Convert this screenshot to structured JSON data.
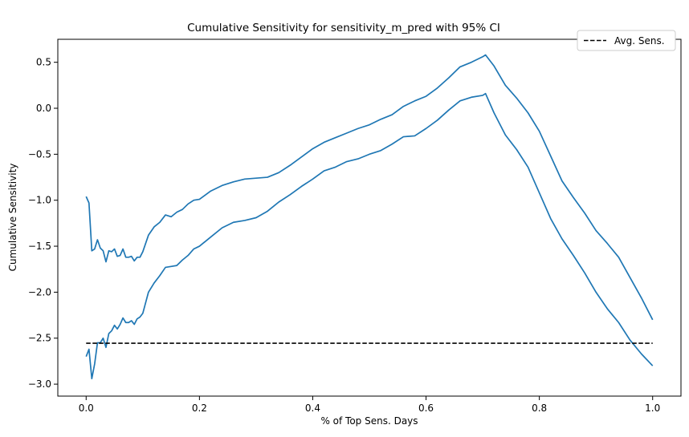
{
  "chart_data": {
    "type": "line",
    "title": "Cumulative Sensitivity for sensitivity_m_pred with 95% CI",
    "xlabel": "% of Top Sens. Days",
    "ylabel": "Cumulative Sensitivity",
    "xlim": [
      -0.05,
      1.05
    ],
    "ylim": [
      -3.13,
      0.75
    ],
    "xticks": [
      0.0,
      0.2,
      0.4,
      0.6,
      0.8,
      1.0
    ],
    "xtick_labels": [
      "0.0",
      "0.2",
      "0.4",
      "0.6",
      "0.8",
      "1.0"
    ],
    "yticks": [
      -3.0,
      -2.5,
      -2.0,
      -1.5,
      -1.0,
      -0.5,
      0.0,
      0.5
    ],
    "ytick_labels": [
      "−3.0",
      "−2.5",
      "−2.0",
      "−1.5",
      "−1.0",
      "−0.5",
      "0.0",
      "0.5"
    ],
    "grid": false,
    "legend": {
      "position": "top-right",
      "entries": [
        {
          "label": "Avg. Sens.",
          "style": "dashed",
          "color": "#000000"
        }
      ]
    },
    "series": [
      {
        "color": "#1f77b4",
        "style": "solid",
        "x": [
          0.0,
          0.005,
          0.01,
          0.015,
          0.02,
          0.025,
          0.03,
          0.035,
          0.04,
          0.045,
          0.05,
          0.055,
          0.06,
          0.065,
          0.07,
          0.075,
          0.08,
          0.085,
          0.09,
          0.095,
          0.1,
          0.11,
          0.12,
          0.13,
          0.14,
          0.15,
          0.16,
          0.17,
          0.18,
          0.19,
          0.2,
          0.22,
          0.24,
          0.26,
          0.28,
          0.3,
          0.32,
          0.34,
          0.36,
          0.38,
          0.4,
          0.42,
          0.44,
          0.46,
          0.48,
          0.5,
          0.52,
          0.54,
          0.56,
          0.58,
          0.6,
          0.62,
          0.64,
          0.66,
          0.68,
          0.7,
          0.705,
          0.72,
          0.74,
          0.76,
          0.78,
          0.8,
          0.82,
          0.84,
          0.86,
          0.88,
          0.9,
          0.92,
          0.94,
          0.96,
          0.98,
          1.0
        ],
        "y": [
          -0.96,
          -1.03,
          -1.55,
          -1.53,
          -1.43,
          -1.52,
          -1.55,
          -1.67,
          -1.55,
          -1.56,
          -1.53,
          -1.61,
          -1.6,
          -1.53,
          -1.62,
          -1.62,
          -1.61,
          -1.66,
          -1.62,
          -1.62,
          -1.56,
          -1.38,
          -1.29,
          -1.24,
          -1.16,
          -1.18,
          -1.13,
          -1.1,
          -1.04,
          -1.0,
          -0.99,
          -0.9,
          -0.84,
          -0.8,
          -0.77,
          -0.76,
          -0.75,
          -0.7,
          -0.62,
          -0.53,
          -0.44,
          -0.37,
          -0.32,
          -0.27,
          -0.22,
          -0.18,
          -0.12,
          -0.07,
          0.02,
          0.08,
          0.13,
          0.22,
          0.33,
          0.45,
          0.5,
          0.56,
          0.58,
          0.46,
          0.25,
          0.11,
          -0.05,
          -0.25,
          -0.52,
          -0.79,
          -0.97,
          -1.14,
          -1.33,
          -1.47,
          -1.62,
          -1.84,
          -2.06,
          -2.3
        ]
      },
      {
        "color": "#1f77b4",
        "style": "solid",
        "x": [
          0.0,
          0.005,
          0.01,
          0.015,
          0.02,
          0.025,
          0.03,
          0.035,
          0.04,
          0.045,
          0.05,
          0.055,
          0.06,
          0.065,
          0.07,
          0.075,
          0.08,
          0.085,
          0.09,
          0.095,
          0.1,
          0.11,
          0.12,
          0.13,
          0.14,
          0.15,
          0.16,
          0.17,
          0.18,
          0.19,
          0.2,
          0.22,
          0.24,
          0.26,
          0.28,
          0.3,
          0.32,
          0.34,
          0.36,
          0.38,
          0.4,
          0.42,
          0.44,
          0.46,
          0.48,
          0.5,
          0.52,
          0.54,
          0.56,
          0.58,
          0.6,
          0.62,
          0.64,
          0.66,
          0.68,
          0.7,
          0.705,
          0.72,
          0.74,
          0.76,
          0.78,
          0.8,
          0.82,
          0.84,
          0.86,
          0.88,
          0.9,
          0.92,
          0.94,
          0.96,
          0.98,
          1.0
        ],
        "y": [
          -2.7,
          -2.62,
          -2.94,
          -2.78,
          -2.55,
          -2.55,
          -2.5,
          -2.6,
          -2.45,
          -2.42,
          -2.36,
          -2.4,
          -2.35,
          -2.28,
          -2.33,
          -2.33,
          -2.31,
          -2.35,
          -2.29,
          -2.27,
          -2.23,
          -2.0,
          -1.9,
          -1.82,
          -1.73,
          -1.72,
          -1.71,
          -1.65,
          -1.6,
          -1.53,
          -1.5,
          -1.4,
          -1.3,
          -1.24,
          -1.22,
          -1.19,
          -1.12,
          -1.02,
          -0.94,
          -0.85,
          -0.77,
          -0.68,
          -0.64,
          -0.58,
          -0.55,
          -0.5,
          -0.46,
          -0.39,
          -0.31,
          -0.3,
          -0.22,
          -0.13,
          -0.02,
          0.08,
          0.12,
          0.14,
          0.16,
          -0.05,
          -0.29,
          -0.45,
          -0.64,
          -0.92,
          -1.2,
          -1.42,
          -1.6,
          -1.79,
          -2.0,
          -2.18,
          -2.33,
          -2.52,
          -2.67,
          -2.8
        ]
      },
      {
        "color": "#000000",
        "style": "dashed",
        "name": "Avg. Sens.",
        "x": [
          0.0,
          1.0
        ],
        "y": [
          -2.555,
          -2.555
        ]
      }
    ]
  }
}
